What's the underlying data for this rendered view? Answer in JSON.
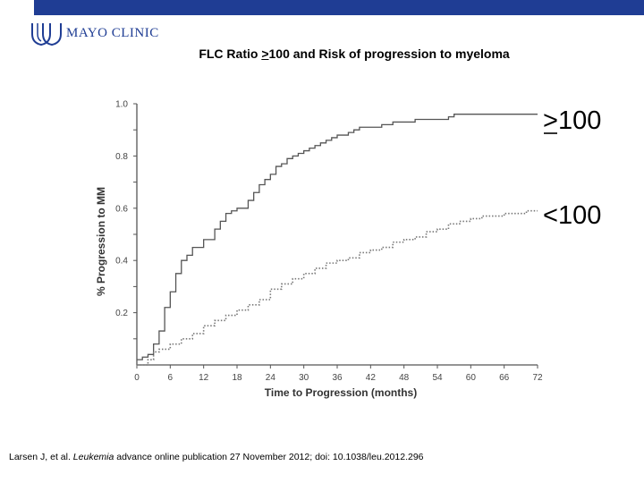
{
  "header": {
    "logo_text": "MAYO CLINIC",
    "bar_color": "#1f3d94"
  },
  "title": {
    "prefix": "FLC Ratio ",
    "ge_symbol": ">",
    "rest": "100 and Risk of progression to myeloma"
  },
  "citation": {
    "before": "Larsen J, et al. ",
    "journal": "Leukemia",
    "after": " advance online publication 27 November 2012; doi: 10.1038/leu.2012.296"
  },
  "chart_data": {
    "type": "line",
    "step": true,
    "xlabel": "Time to Progression (months)",
    "ylabel": "% Progression to MM",
    "xlim": [
      0,
      72
    ],
    "ylim": [
      0,
      1.0
    ],
    "xticks": [
      0,
      6,
      12,
      18,
      24,
      30,
      36,
      42,
      48,
      54,
      60,
      66,
      72
    ],
    "yticks": [
      "0.2",
      "0.4",
      "0.6",
      "0.8",
      "1.0"
    ],
    "legend_placement": "right, beside line ends",
    "series": [
      {
        "name": ">100",
        "label_symbol": ">",
        "label_rest": "100",
        "style": "solid",
        "x": [
          0,
          1,
          2,
          3,
          4,
          5,
          6,
          7,
          8,
          9,
          10,
          12,
          14,
          15,
          16,
          17,
          18,
          20,
          21,
          22,
          23,
          24,
          25,
          26,
          27,
          28,
          29,
          30,
          31,
          32,
          33,
          34,
          35,
          36,
          37,
          38,
          39,
          40,
          42,
          44,
          46,
          48,
          50,
          52,
          55,
          56,
          57,
          62,
          65,
          72
        ],
        "y": [
          0.02,
          0.03,
          0.04,
          0.08,
          0.13,
          0.22,
          0.28,
          0.35,
          0.4,
          0.42,
          0.45,
          0.48,
          0.52,
          0.55,
          0.58,
          0.59,
          0.6,
          0.63,
          0.66,
          0.69,
          0.71,
          0.73,
          0.76,
          0.77,
          0.79,
          0.8,
          0.81,
          0.82,
          0.83,
          0.84,
          0.85,
          0.86,
          0.87,
          0.88,
          0.88,
          0.89,
          0.9,
          0.91,
          0.91,
          0.92,
          0.93,
          0.93,
          0.94,
          0.94,
          0.94,
          0.95,
          0.96,
          0.96,
          0.96,
          0.96
        ]
      },
      {
        "name": "<100",
        "label_symbol": "<",
        "label_rest": "100",
        "style": "dotted",
        "x": [
          0,
          2,
          3,
          4,
          6,
          8,
          10,
          12,
          14,
          16,
          18,
          20,
          22,
          24,
          26,
          28,
          30,
          32,
          34,
          36,
          38,
          40,
          42,
          44,
          46,
          48,
          50,
          52,
          54,
          56,
          58,
          60,
          62,
          64,
          66,
          68,
          70,
          72
        ],
        "y": [
          0.0,
          0.02,
          0.05,
          0.06,
          0.08,
          0.1,
          0.12,
          0.15,
          0.17,
          0.19,
          0.21,
          0.23,
          0.25,
          0.29,
          0.31,
          0.33,
          0.35,
          0.37,
          0.39,
          0.4,
          0.41,
          0.43,
          0.44,
          0.45,
          0.47,
          0.48,
          0.49,
          0.51,
          0.52,
          0.54,
          0.55,
          0.56,
          0.57,
          0.57,
          0.58,
          0.58,
          0.59,
          0.59
        ]
      }
    ]
  }
}
